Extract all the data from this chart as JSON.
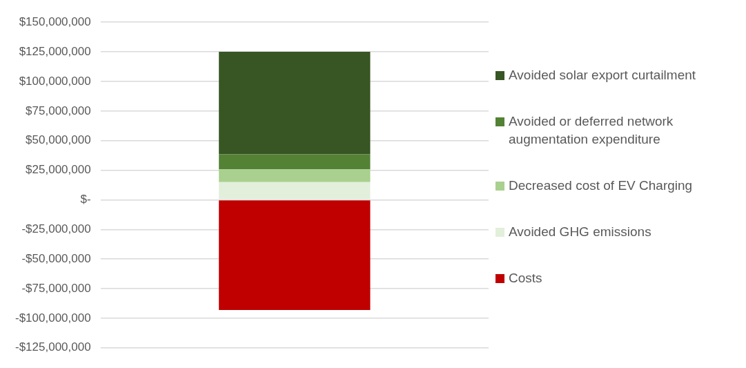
{
  "chart_data": {
    "type": "bar",
    "stacked": true,
    "categories": [
      null
    ],
    "series": [
      {
        "name": "Costs",
        "color": "#c00000",
        "values": [
          -93000000
        ]
      },
      {
        "name": "Avoided GHG emissions",
        "color": "#e2efda",
        "values": [
          15000000
        ]
      },
      {
        "name": "Decreased cost of EV Charging",
        "color": "#a9d08e",
        "values": [
          10700000
        ]
      },
      {
        "name": "Avoided or deferred network augmentation expenditure",
        "color": "#548235",
        "values": [
          12800000
        ]
      },
      {
        "name": "Avoided solar export curtailment",
        "color": "#375623",
        "values": [
          86500000
        ]
      }
    ],
    "ylim": [
      -125000000,
      150000000
    ],
    "yticks": [
      {
        "value": 150000000,
        "label": "$150,000,000"
      },
      {
        "value": 125000000,
        "label": "$125,000,000"
      },
      {
        "value": 100000000,
        "label": "$100,000,000"
      },
      {
        "value": 75000000,
        "label": "$75,000,000"
      },
      {
        "value": 50000000,
        "label": "$50,000,000"
      },
      {
        "value": 25000000,
        "label": "$25,000,000"
      },
      {
        "value": 0,
        "label": "$-"
      },
      {
        "value": -25000000,
        "label": "-$25,000,000"
      },
      {
        "value": -50000000,
        "label": "-$50,000,000"
      },
      {
        "value": -75000000,
        "label": "-$75,000,000"
      },
      {
        "value": -100000000,
        "label": "-$100,000,000"
      },
      {
        "value": -125000000,
        "label": "-$125,000,000"
      }
    ],
    "grid": "y",
    "legend": "right",
    "tick_labels": "y"
  }
}
